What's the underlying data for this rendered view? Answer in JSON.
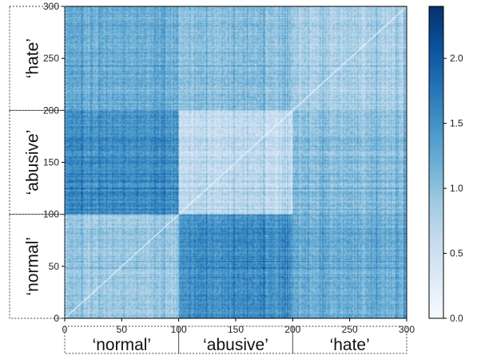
{
  "chart_data": {
    "type": "heatmap",
    "title": "",
    "xlabel": "",
    "ylabel": "",
    "n": 300,
    "xlim": [
      0,
      300
    ],
    "ylim": [
      0,
      300
    ],
    "x_ticks": [
      0,
      50,
      100,
      150,
      200,
      250,
      300
    ],
    "y_ticks": [
      0,
      50,
      100,
      150,
      200,
      250,
      300
    ],
    "groups": [
      {
        "label": "‘normal’",
        "start": 0,
        "end": 100
      },
      {
        "label": "‘abusive’",
        "start": 100,
        "end": 200
      },
      {
        "label": "‘hate’",
        "start": 200,
        "end": 300
      }
    ],
    "block_values": [
      [
        0.9,
        1.5,
        1.2
      ],
      [
        1.5,
        0.6,
        1.0
      ],
      [
        1.2,
        1.0,
        0.8
      ]
    ],
    "diagonal_value": 0.0,
    "colorbar": {
      "min": 0.0,
      "max": 2.4,
      "ticks": [
        0.0,
        0.5,
        1.0,
        1.5,
        2.0
      ],
      "tick_labels": [
        "0.0",
        "0.5",
        "1.0",
        "1.5",
        "2.0"
      ],
      "colormap": "Blues"
    },
    "grid": false
  }
}
